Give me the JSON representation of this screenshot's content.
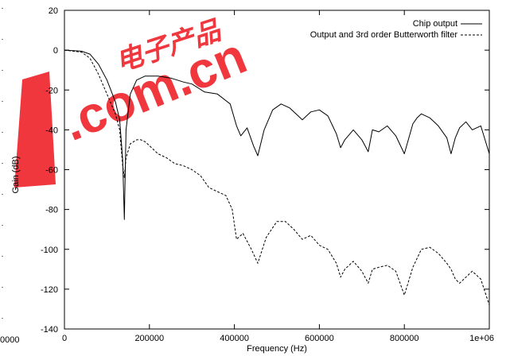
{
  "chart_data": {
    "type": "line",
    "title": "",
    "xlabel": "Frequency (Hz)",
    "ylabel": "Gain (dB)",
    "xlim": [
      0,
      1000000
    ],
    "ylim": [
      -140,
      20
    ],
    "x_ticks": [
      0,
      200000,
      400000,
      600000,
      800000,
      1000000
    ],
    "x_tick_labels": [
      "0",
      "200000",
      "400000",
      "600000",
      "800000",
      "1e+06"
    ],
    "y_ticks": [
      20,
      0,
      -20,
      -40,
      -60,
      -80,
      -100,
      -120,
      -140
    ],
    "y_tick_labels": [
      "20",
      "0",
      "-20",
      "-40",
      "-60",
      "-80",
      "-100",
      "-120",
      "-140"
    ],
    "left_edge_fragments": [
      "0000"
    ],
    "grid": false,
    "legend_position": "top-right",
    "series": [
      {
        "name": "Chip output",
        "style": "solid",
        "color": "#000000",
        "x": [
          0,
          40000,
          60000,
          80000,
          100000,
          120000,
          130000,
          137000,
          141000,
          145000,
          155000,
          170000,
          190000,
          220000,
          250000,
          280000,
          300000,
          330000,
          360000,
          390000,
          405000,
          415000,
          430000,
          445000,
          455000,
          470000,
          490000,
          510000,
          530000,
          560000,
          580000,
          600000,
          620000,
          640000,
          650000,
          660000,
          680000,
          700000,
          715000,
          725000,
          740000,
          760000,
          780000,
          800000,
          820000,
          830000,
          840000,
          860000,
          880000,
          900000,
          910000,
          920000,
          930000,
          945000,
          960000,
          980000,
          1000000
        ],
        "y": [
          0,
          -0.5,
          -2,
          -7,
          -15,
          -26,
          -35,
          -55,
          -85,
          -40,
          -22,
          -15,
          -13,
          -13,
          -14,
          -16,
          -17,
          -21,
          -22,
          -27,
          -38,
          -43,
          -39,
          -48,
          -53,
          -40,
          -30,
          -27,
          -29,
          -35,
          -31,
          -30,
          -33,
          -42,
          -49,
          -45,
          -40,
          -45,
          -51,
          -40,
          -41,
          -38,
          -43,
          -52,
          -37,
          -34,
          -32,
          -34,
          -38,
          -44,
          -52,
          -44,
          -39,
          -36,
          -40,
          -38,
          -52
        ]
      },
      {
        "name": "Output and 3rd order Butterworth filter",
        "style": "dashed",
        "color": "#000000",
        "x": [
          0,
          40000,
          60000,
          80000,
          100000,
          120000,
          130000,
          137000,
          141000,
          145000,
          155000,
          170000,
          180000,
          190000,
          205000,
          220000,
          240000,
          260000,
          280000,
          300000,
          320000,
          340000,
          360000,
          380000,
          395000,
          405000,
          420000,
          440000,
          455000,
          475000,
          500000,
          520000,
          540000,
          560000,
          580000,
          600000,
          620000,
          640000,
          650000,
          660000,
          680000,
          700000,
          715000,
          725000,
          740000,
          760000,
          780000,
          800000,
          820000,
          840000,
          860000,
          880000,
          900000,
          910000,
          920000,
          930000,
          945000,
          960000,
          980000,
          1000000
        ],
        "y": [
          0,
          -1,
          -4,
          -12,
          -22,
          -32,
          -40,
          -58,
          -64,
          -54,
          -47,
          -45,
          -45,
          -46,
          -49,
          -52,
          -54,
          -57,
          -58,
          -60,
          -63,
          -69,
          -71,
          -73,
          -80,
          -95,
          -92,
          -100,
          -107,
          -94,
          -86,
          -86,
          -90,
          -95,
          -93,
          -98,
          -100,
          -107,
          -114,
          -110,
          -106,
          -111,
          -117,
          -110,
          -109,
          -108,
          -111,
          -123,
          -109,
          -100,
          -99,
          -102,
          -107,
          -110,
          -115,
          -117,
          -114,
          -111,
          -115,
          -128
        ]
      }
    ]
  },
  "watermark": {
    "chars": "电子产品",
    "url": ".com.cn",
    "color": "#ee1c24"
  }
}
